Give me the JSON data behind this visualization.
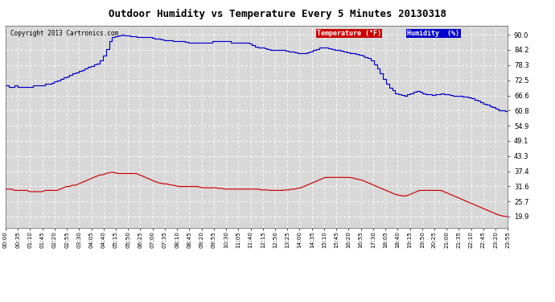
{
  "title": "Outdoor Humidity vs Temperature Every 5 Minutes 20130318",
  "copyright": "Copyright 2013 Cartronics.com",
  "background_color": "#ffffff",
  "plot_bg_color": "#d8d8d8",
  "grid_color": "#ffffff",
  "legend_temp_label": "Temperature (°F)",
  "legend_hum_label": "Humidity  (%)",
  "legend_temp_bg": "#cc0000",
  "legend_hum_bg": "#0000cc",
  "temp_color": "#cc0000",
  "hum_color": "#0000cc",
  "yticks": [
    19.9,
    25.7,
    31.6,
    37.4,
    43.3,
    49.1,
    54.9,
    60.8,
    66.6,
    72.5,
    78.3,
    84.2,
    90.0
  ],
  "ylim": [
    15.5,
    93.5
  ],
  "xtick_labels": [
    "00:00",
    "00:35",
    "01:10",
    "01:45",
    "02:20",
    "02:55",
    "03:30",
    "04:05",
    "04:40",
    "05:15",
    "05:50",
    "06:25",
    "07:00",
    "07:35",
    "08:10",
    "08:45",
    "09:20",
    "09:55",
    "10:30",
    "11:05",
    "11:40",
    "12:15",
    "12:50",
    "13:25",
    "14:00",
    "14:35",
    "15:10",
    "15:45",
    "16:20",
    "16:55",
    "17:30",
    "18:05",
    "18:40",
    "19:15",
    "19:50",
    "20:25",
    "21:00",
    "21:35",
    "22:10",
    "22:45",
    "23:20",
    "23:55"
  ],
  "hum_data": [
    70.5,
    70.0,
    70.0,
    70.5,
    70.0,
    70.0,
    70.0,
    70.0,
    70.0,
    70.5,
    70.5,
    70.5,
    70.5,
    71.0,
    71.0,
    71.5,
    72.0,
    72.5,
    73.0,
    73.5,
    74.0,
    74.5,
    75.0,
    75.5,
    76.0,
    76.5,
    77.0,
    77.5,
    78.0,
    78.5,
    79.0,
    80.0,
    82.0,
    84.5,
    87.5,
    89.0,
    89.5,
    89.8,
    90.0,
    89.8,
    89.8,
    89.5,
    89.5,
    89.2,
    89.0,
    89.0,
    89.0,
    89.0,
    88.8,
    88.5,
    88.5,
    88.2,
    88.0,
    88.0,
    87.8,
    87.5,
    87.5,
    87.5,
    87.5,
    87.2,
    87.0,
    87.0,
    87.0,
    86.8,
    86.8,
    87.0,
    87.0,
    87.0,
    87.5,
    87.5,
    87.5,
    87.5,
    87.5,
    87.5,
    87.0,
    87.0,
    87.0,
    87.0,
    87.0,
    87.0,
    86.5,
    86.0,
    85.5,
    85.0,
    85.0,
    84.8,
    84.5,
    84.2,
    84.0,
    84.0,
    84.0,
    84.0,
    83.8,
    83.5,
    83.5,
    83.2,
    83.0,
    83.0,
    83.0,
    83.2,
    83.5,
    84.0,
    84.5,
    85.0,
    85.0,
    85.0,
    84.8,
    84.5,
    84.2,
    84.0,
    83.8,
    83.5,
    83.2,
    83.0,
    82.8,
    82.5,
    82.2,
    82.0,
    81.5,
    81.0,
    80.0,
    78.5,
    77.0,
    75.0,
    73.0,
    71.0,
    69.5,
    68.5,
    67.5,
    67.0,
    66.8,
    66.5,
    67.0,
    67.5,
    68.0,
    68.2,
    68.0,
    67.5,
    67.2,
    67.0,
    66.8,
    67.0,
    67.2,
    67.5,
    67.2,
    67.0,
    66.8,
    66.5,
    66.5,
    66.5,
    66.2,
    66.0,
    65.8,
    65.5,
    65.0,
    64.5,
    64.0,
    63.5,
    63.0,
    62.5,
    62.0,
    61.5,
    61.0,
    60.8,
    60.5,
    60.8
  ],
  "temp_data": [
    30.5,
    30.5,
    30.5,
    30.0,
    30.0,
    30.0,
    30.0,
    30.0,
    29.5,
    29.5,
    29.5,
    29.5,
    29.5,
    30.0,
    30.0,
    30.0,
    30.0,
    30.0,
    30.5,
    31.0,
    31.5,
    31.5,
    32.0,
    32.0,
    32.5,
    33.0,
    33.5,
    34.0,
    34.5,
    35.0,
    35.5,
    36.0,
    36.0,
    36.5,
    36.8,
    37.0,
    36.8,
    36.5,
    36.5,
    36.5,
    36.5,
    36.5,
    36.5,
    36.5,
    36.0,
    35.5,
    35.0,
    34.5,
    34.0,
    33.5,
    33.0,
    32.8,
    32.5,
    32.5,
    32.2,
    32.0,
    31.8,
    31.5,
    31.5,
    31.5,
    31.5,
    31.5,
    31.5,
    31.5,
    31.2,
    31.0,
    31.0,
    31.0,
    31.0,
    31.0,
    30.8,
    30.8,
    30.5,
    30.5,
    30.5,
    30.5,
    30.5,
    30.5,
    30.5,
    30.5,
    30.5,
    30.5,
    30.5,
    30.5,
    30.2,
    30.2,
    30.2,
    30.0,
    30.0,
    30.0,
    30.0,
    30.0,
    30.2,
    30.2,
    30.5,
    30.5,
    30.8,
    31.0,
    31.5,
    32.0,
    32.5,
    33.0,
    33.5,
    34.0,
    34.5,
    35.0,
    35.0,
    35.0,
    35.0,
    35.0,
    35.0,
    35.0,
    35.0,
    35.0,
    34.8,
    34.5,
    34.2,
    34.0,
    33.5,
    33.0,
    32.5,
    32.0,
    31.5,
    31.0,
    30.5,
    30.0,
    29.5,
    29.0,
    28.5,
    28.2,
    28.0,
    27.8,
    28.0,
    28.5,
    29.0,
    29.5,
    30.0,
    30.0,
    30.0,
    30.0,
    30.0,
    30.0,
    30.0,
    30.0,
    29.5,
    29.0,
    28.5,
    28.0,
    27.5,
    27.0,
    26.5,
    26.0,
    25.5,
    25.0,
    24.5,
    24.0,
    23.5,
    23.0,
    22.5,
    22.0,
    21.5,
    21.0,
    20.5,
    20.2,
    20.0,
    19.9
  ]
}
